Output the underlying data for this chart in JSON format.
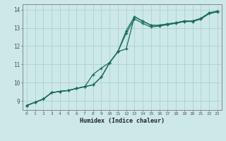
{
  "xlabel": "Humidex (Indice chaleur)",
  "bg_color": "#cce8e8",
  "grid_color": "#aacccc",
  "line_color": "#1a6b5a",
  "xlim": [
    -0.5,
    23.5
  ],
  "ylim": [
    8.5,
    14.3
  ],
  "xticks": [
    0,
    1,
    2,
    3,
    4,
    5,
    6,
    7,
    8,
    9,
    10,
    11,
    12,
    13,
    14,
    15,
    16,
    17,
    18,
    19,
    20,
    21,
    22,
    23
  ],
  "yticks": [
    9,
    10,
    11,
    12,
    13,
    14
  ],
  "line1_x": [
    0,
    1,
    2,
    3,
    4,
    5,
    6,
    7,
    8,
    9,
    10,
    11,
    12,
    13,
    14,
    15,
    16,
    17,
    18,
    19,
    20,
    21,
    22,
    23
  ],
  "line1_y": [
    8.75,
    8.92,
    9.1,
    9.45,
    9.52,
    9.57,
    9.68,
    9.78,
    9.88,
    10.3,
    11.1,
    11.7,
    12.85,
    13.62,
    13.37,
    13.15,
    13.15,
    13.22,
    13.28,
    13.38,
    13.38,
    13.52,
    13.82,
    13.92
  ],
  "line2_x": [
    0,
    1,
    2,
    3,
    4,
    5,
    6,
    7,
    8,
    9,
    10,
    11,
    12,
    13,
    14,
    15,
    16,
    17,
    18,
    19,
    20,
    21,
    22,
    23
  ],
  "line2_y": [
    8.75,
    8.92,
    9.1,
    9.45,
    9.52,
    9.57,
    9.68,
    9.78,
    9.88,
    10.3,
    11.1,
    11.7,
    12.7,
    13.5,
    13.25,
    13.05,
    13.1,
    13.18,
    13.25,
    13.35,
    13.35,
    13.48,
    13.78,
    13.88
  ],
  "line3_x": [
    0,
    1,
    2,
    3,
    4,
    5,
    6,
    7,
    8,
    9,
    10,
    11,
    12,
    13,
    14,
    15,
    16,
    17,
    18,
    19,
    20,
    21,
    22,
    23
  ],
  "line3_y": [
    8.75,
    8.92,
    9.1,
    9.45,
    9.52,
    9.57,
    9.68,
    9.78,
    10.45,
    10.8,
    11.1,
    11.7,
    11.85,
    13.62,
    13.37,
    13.15,
    13.15,
    13.22,
    13.28,
    13.38,
    13.38,
    13.52,
    13.82,
    13.92
  ]
}
